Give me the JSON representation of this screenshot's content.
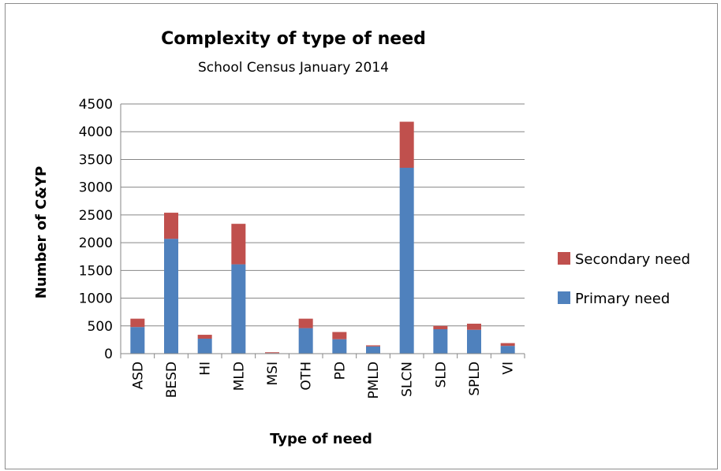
{
  "chart_data": {
    "type": "bar",
    "stacked": true,
    "title": "Complexity of type of need",
    "subtitle": "School Census January 2014",
    "xlabel": "Type of need",
    "ylabel": "Number of C&YP",
    "ylim": [
      0,
      4500
    ],
    "yticks": [
      0,
      500,
      1000,
      1500,
      2000,
      2500,
      3000,
      3500,
      4000,
      4500
    ],
    "grid": true,
    "legend_position": "right",
    "categories": [
      "ASD",
      "BESD",
      "HI",
      "MLD",
      "MSI",
      "OTH",
      "PD",
      "PMLD",
      "SLCN",
      "SLD",
      "SPLD",
      "VI"
    ],
    "series": [
      {
        "name": "Primary need",
        "color": "#4f81bd",
        "values": [
          480,
          2070,
          270,
          1610,
          10,
          460,
          260,
          130,
          3350,
          440,
          430,
          140
        ]
      },
      {
        "name": "Secondary need",
        "color": "#c0504d",
        "values": [
          150,
          470,
          70,
          730,
          15,
          170,
          130,
          20,
          830,
          60,
          110,
          50
        ]
      }
    ]
  }
}
